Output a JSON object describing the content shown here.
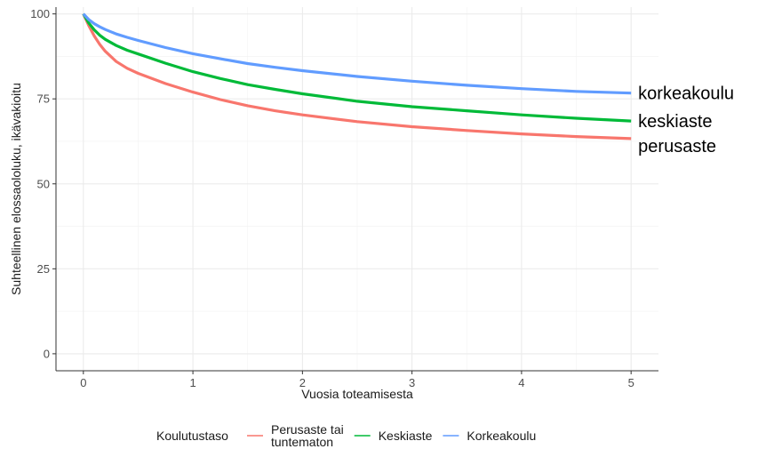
{
  "chart_data": {
    "type": "line",
    "title": "",
    "xlabel": "Vuosia toteamisesta",
    "ylabel": "Suhteellinen elossaololuku,  ikävakioitu",
    "xlim": [
      -0.25,
      5.25
    ],
    "ylim": [
      -5,
      102
    ],
    "x_ticks": [
      0,
      1,
      2,
      3,
      4,
      5
    ],
    "y_ticks": [
      0,
      25,
      50,
      75,
      100
    ],
    "x_tick_labels": [
      "0",
      "1",
      "2",
      "3",
      "4",
      "5"
    ],
    "y_tick_labels": [
      "0",
      "25",
      "50",
      "75",
      "100"
    ],
    "grid": true,
    "legend": {
      "title": "Koulutustaso",
      "position": "bottom",
      "entries": [
        {
          "label_lines": [
            "Perusaste tai",
            "tuntematon"
          ],
          "color": "#F8766D"
        },
        {
          "label_lines": [
            "Keskiaste"
          ],
          "color": "#00BA38"
        },
        {
          "label_lines": [
            "Korkeakoulu"
          ],
          "color": "#619CFF"
        }
      ]
    },
    "series": [
      {
        "color": "#F8766D",
        "end_label": "perusaste",
        "x": [
          0,
          0.05,
          0.1,
          0.15,
          0.2,
          0.3,
          0.4,
          0.5,
          0.75,
          1,
          1.25,
          1.5,
          1.75,
          2,
          2.5,
          3,
          3.5,
          4,
          4.5,
          5
        ],
        "y": [
          100,
          96.5,
          93.5,
          91,
          89,
          86,
          84,
          82.5,
          79.5,
          77,
          74.8,
          73,
          71.5,
          70.3,
          68.3,
          66.8,
          65.7,
          64.7,
          63.9,
          63.3
        ]
      },
      {
        "color": "#00BA38",
        "end_label": "keskiaste",
        "x": [
          0,
          0.05,
          0.1,
          0.15,
          0.2,
          0.3,
          0.4,
          0.5,
          0.75,
          1,
          1.25,
          1.5,
          1.75,
          2,
          2.5,
          3,
          3.5,
          4,
          4.5,
          5
        ],
        "y": [
          100,
          97.3,
          95.3,
          93.7,
          92.5,
          90.7,
          89.3,
          88.2,
          85.5,
          83,
          81,
          79.2,
          77.8,
          76.5,
          74.3,
          72.7,
          71.5,
          70.3,
          69.3,
          68.5
        ]
      },
      {
        "color": "#619CFF",
        "end_label": "korkeakoulu",
        "x": [
          0,
          0.05,
          0.1,
          0.15,
          0.2,
          0.3,
          0.4,
          0.5,
          0.75,
          1,
          1.25,
          1.5,
          1.75,
          2,
          2.5,
          3,
          3.5,
          4,
          4.5,
          5
        ],
        "y": [
          100,
          98.3,
          97.1,
          96.2,
          95.4,
          94.1,
          93.1,
          92.2,
          90.1,
          88.3,
          86.8,
          85.4,
          84.3,
          83.3,
          81.6,
          80.2,
          79,
          78,
          77.2,
          76.7
        ]
      }
    ]
  }
}
